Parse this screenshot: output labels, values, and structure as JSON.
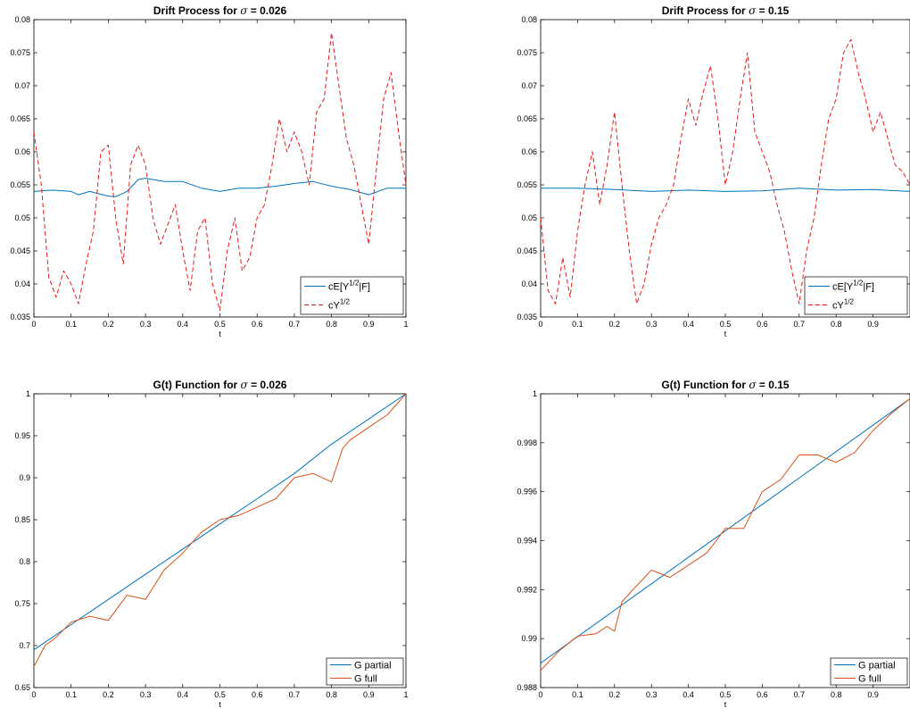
{
  "colors": {
    "blue": "#0072BD",
    "red": "#E41A1C",
    "orange": "#D95319"
  },
  "chart_data": [
    {
      "id": "drift-0026",
      "type": "line",
      "title_prefix": "Drift Process for ",
      "title_symbol": "σ",
      "title_suffix": " = 0.026",
      "xlabel": "t",
      "ylabel": "",
      "xlim": [
        0,
        1
      ],
      "ylim": [
        0.035,
        0.08
      ],
      "xticks": [
        0,
        0.1,
        0.2,
        0.3,
        0.4,
        0.5,
        0.6,
        0.7,
        0.8,
        0.9,
        1
      ],
      "yticks": [
        0.035,
        0.04,
        0.045,
        0.05,
        0.055,
        0.06,
        0.065,
        0.07,
        0.075,
        0.08
      ],
      "xtick_labels": [
        "0",
        "0.1",
        "0.2",
        "0.3",
        "0.4",
        "0.5",
        "0.6",
        "0.7",
        "0.8",
        "0.9",
        "1"
      ],
      "ytick_labels": [
        "0.035",
        "0.04",
        "0.045",
        "0.05",
        "0.055",
        "0.06",
        "0.065",
        "0.07",
        "0.075",
        "0.08"
      ],
      "legend_placement": "bottom-right",
      "series": [
        {
          "name": "cE[Y^{1/2}|F]",
          "legend_main": "cE[Y",
          "legend_sup": "1/2",
          "legend_tail": "|F]",
          "style": "solid",
          "color": "#0072BD",
          "x": [
            0,
            0.05,
            0.1,
            0.12,
            0.15,
            0.2,
            0.22,
            0.25,
            0.28,
            0.3,
            0.35,
            0.4,
            0.45,
            0.5,
            0.55,
            0.6,
            0.65,
            0.7,
            0.75,
            0.8,
            0.85,
            0.9,
            0.95,
            1
          ],
          "y": [
            0.054,
            0.0542,
            0.054,
            0.0535,
            0.054,
            0.0533,
            0.0532,
            0.054,
            0.0558,
            0.056,
            0.0555,
            0.0555,
            0.0545,
            0.054,
            0.0545,
            0.0545,
            0.0548,
            0.0552,
            0.0555,
            0.0548,
            0.0543,
            0.0535,
            0.0545,
            0.0545
          ]
        },
        {
          "name": "cY^{1/2}",
          "legend_main": "cY",
          "legend_sup": "1/2",
          "legend_tail": "",
          "style": "dashed",
          "color": "#E41A1C",
          "x": [
            0,
            0.02,
            0.04,
            0.06,
            0.08,
            0.1,
            0.12,
            0.14,
            0.16,
            0.18,
            0.2,
            0.22,
            0.24,
            0.26,
            0.28,
            0.3,
            0.32,
            0.34,
            0.36,
            0.38,
            0.4,
            0.42,
            0.44,
            0.46,
            0.48,
            0.5,
            0.52,
            0.54,
            0.56,
            0.58,
            0.6,
            0.62,
            0.64,
            0.66,
            0.68,
            0.7,
            0.72,
            0.74,
            0.76,
            0.78,
            0.8,
            0.82,
            0.84,
            0.86,
            0.88,
            0.9,
            0.92,
            0.94,
            0.96,
            0.98,
            1
          ],
          "y": [
            0.063,
            0.055,
            0.041,
            0.038,
            0.042,
            0.04,
            0.037,
            0.043,
            0.048,
            0.06,
            0.061,
            0.05,
            0.043,
            0.058,
            0.061,
            0.058,
            0.05,
            0.046,
            0.049,
            0.052,
            0.045,
            0.039,
            0.048,
            0.05,
            0.04,
            0.036,
            0.045,
            0.05,
            0.042,
            0.044,
            0.05,
            0.052,
            0.058,
            0.065,
            0.06,
            0.063,
            0.06,
            0.055,
            0.066,
            0.068,
            0.078,
            0.07,
            0.062,
            0.058,
            0.052,
            0.046,
            0.057,
            0.068,
            0.072,
            0.063,
            0.055
          ]
        }
      ]
    },
    {
      "id": "drift-015",
      "type": "line",
      "title_prefix": "Drift Process for ",
      "title_symbol": "σ",
      "title_suffix": " = 0.15",
      "xlabel": "t",
      "ylabel": "",
      "xlim": [
        0,
        1
      ],
      "ylim": [
        0.035,
        0.08
      ],
      "xticks": [
        0,
        0.1,
        0.2,
        0.3,
        0.4,
        0.5,
        0.6,
        0.7,
        0.8,
        0.9
      ],
      "yticks": [
        0.035,
        0.04,
        0.045,
        0.05,
        0.055,
        0.06,
        0.065,
        0.07,
        0.075,
        0.08
      ],
      "xtick_labels": [
        "0",
        "0.1",
        "0.2",
        "0.3",
        "0.4",
        "0.5",
        "0.6",
        "0.7",
        "0.8",
        "0.9"
      ],
      "ytick_labels": [
        "0.035",
        "0.04",
        "0.045",
        "0.05",
        "0.055",
        "0.06",
        "0.065",
        "0.07",
        "0.075",
        "0.08"
      ],
      "legend_placement": "bottom-right",
      "series": [
        {
          "name": "cE[Y^{1/2}|F]",
          "legend_main": "cE[Y",
          "legend_sup": "1/2",
          "legend_tail": "|F]",
          "style": "solid",
          "color": "#0072BD",
          "x": [
            0,
            0.1,
            0.2,
            0.3,
            0.4,
            0.5,
            0.6,
            0.7,
            0.8,
            0.9,
            1
          ],
          "y": [
            0.0545,
            0.0545,
            0.0543,
            0.054,
            0.0542,
            0.054,
            0.0541,
            0.0545,
            0.0542,
            0.0543,
            0.054
          ]
        },
        {
          "name": "cY^{1/2}",
          "legend_main": "cY",
          "legend_sup": "1/2",
          "legend_tail": "",
          "style": "dashed",
          "color": "#E41A1C",
          "x": [
            0,
            0.02,
            0.04,
            0.06,
            0.08,
            0.1,
            0.12,
            0.14,
            0.16,
            0.18,
            0.2,
            0.22,
            0.24,
            0.26,
            0.28,
            0.3,
            0.32,
            0.34,
            0.36,
            0.38,
            0.4,
            0.42,
            0.44,
            0.46,
            0.48,
            0.5,
            0.52,
            0.54,
            0.56,
            0.58,
            0.6,
            0.62,
            0.64,
            0.66,
            0.68,
            0.7,
            0.72,
            0.74,
            0.76,
            0.78,
            0.8,
            0.82,
            0.84,
            0.86,
            0.88,
            0.9,
            0.92,
            0.94,
            0.96,
            0.98,
            1
          ],
          "y": [
            0.05,
            0.039,
            0.037,
            0.044,
            0.038,
            0.048,
            0.055,
            0.06,
            0.052,
            0.058,
            0.066,
            0.055,
            0.045,
            0.037,
            0.04,
            0.046,
            0.05,
            0.052,
            0.055,
            0.062,
            0.068,
            0.064,
            0.069,
            0.073,
            0.065,
            0.055,
            0.06,
            0.068,
            0.075,
            0.063,
            0.06,
            0.057,
            0.052,
            0.048,
            0.042,
            0.037,
            0.045,
            0.05,
            0.058,
            0.065,
            0.068,
            0.075,
            0.077,
            0.072,
            0.068,
            0.063,
            0.066,
            0.062,
            0.058,
            0.057,
            0.055
          ]
        }
      ]
    },
    {
      "id": "g-0026",
      "type": "line",
      "title_prefix": "G(t) Function for ",
      "title_symbol": "σ",
      "title_suffix": " = 0.026",
      "xlabel": "t",
      "ylabel": "",
      "xlim": [
        0,
        1
      ],
      "ylim": [
        0.65,
        1
      ],
      "xticks": [
        0,
        0.1,
        0.2,
        0.3,
        0.4,
        0.5,
        0.6,
        0.7,
        0.8,
        0.9,
        1
      ],
      "yticks": [
        0.65,
        0.7,
        0.75,
        0.8,
        0.85,
        0.9,
        0.95,
        1
      ],
      "xtick_labels": [
        "0",
        "0.1",
        "0.2",
        "0.3",
        "0.4",
        "0.5",
        "0.6",
        "0.7",
        "0.8",
        "0.9",
        "1"
      ],
      "ytick_labels": [
        "0.65",
        "0.7",
        "0.75",
        "0.8",
        "0.85",
        "0.9",
        "0.95",
        "1"
      ],
      "legend_placement": "bottom-right",
      "series": [
        {
          "name": "G partial",
          "legend_main": "G partial",
          "legend_sup": "",
          "legend_tail": "",
          "style": "solid",
          "color": "#0072BD",
          "x": [
            0,
            0.1,
            0.2,
            0.3,
            0.4,
            0.5,
            0.6,
            0.7,
            0.8,
            0.9,
            1
          ],
          "y": [
            0.695,
            0.725,
            0.755,
            0.785,
            0.815,
            0.845,
            0.875,
            0.905,
            0.94,
            0.97,
            1
          ]
        },
        {
          "name": "G full",
          "legend_main": "G full",
          "legend_sup": "",
          "legend_tail": "",
          "style": "solid",
          "color": "#D95319",
          "x": [
            0,
            0.03,
            0.06,
            0.1,
            0.15,
            0.2,
            0.25,
            0.3,
            0.35,
            0.4,
            0.45,
            0.5,
            0.55,
            0.6,
            0.65,
            0.7,
            0.75,
            0.8,
            0.83,
            0.85,
            0.9,
            0.95,
            1
          ],
          "y": [
            0.675,
            0.7,
            0.71,
            0.728,
            0.735,
            0.73,
            0.76,
            0.755,
            0.79,
            0.81,
            0.835,
            0.85,
            0.855,
            0.865,
            0.875,
            0.9,
            0.905,
            0.895,
            0.935,
            0.945,
            0.96,
            0.975,
            1
          ]
        }
      ]
    },
    {
      "id": "g-015",
      "type": "line",
      "title_prefix": "G(t) Function for ",
      "title_symbol": "σ",
      "title_suffix": " = 0.15",
      "xlabel": "t",
      "ylabel": "",
      "xlim": [
        0,
        1
      ],
      "ylim": [
        0.988,
        1
      ],
      "xticks": [
        0,
        0.1,
        0.2,
        0.3,
        0.4,
        0.5,
        0.6,
        0.7,
        0.8,
        0.9
      ],
      "yticks": [
        0.988,
        0.99,
        0.992,
        0.994,
        0.996,
        0.998,
        1
      ],
      "xtick_labels": [
        "0",
        "0.1",
        "0.2",
        "0.3",
        "0.4",
        "0.5",
        "0.6",
        "0.7",
        "0.8",
        "0.9"
      ],
      "ytick_labels": [
        "0.988",
        "0.99",
        "0.992",
        "0.994",
        "0.996",
        "0.998",
        "1"
      ],
      "legend_placement": "bottom-right",
      "series": [
        {
          "name": "G partial",
          "legend_main": "G partial",
          "legend_sup": "",
          "legend_tail": "",
          "style": "solid",
          "color": "#0072BD",
          "x": [
            0,
            1
          ],
          "y": [
            0.989,
            0.9998
          ]
        },
        {
          "name": "G full",
          "legend_main": "G full",
          "legend_sup": "",
          "legend_tail": "",
          "style": "solid",
          "color": "#D95319",
          "x": [
            0,
            0.05,
            0.1,
            0.15,
            0.18,
            0.2,
            0.22,
            0.25,
            0.3,
            0.35,
            0.4,
            0.45,
            0.5,
            0.55,
            0.6,
            0.65,
            0.7,
            0.75,
            0.8,
            0.85,
            0.9,
            0.95,
            1
          ],
          "y": [
            0.9887,
            0.9895,
            0.9901,
            0.9902,
            0.9905,
            0.9903,
            0.9915,
            0.992,
            0.9928,
            0.9925,
            0.993,
            0.9935,
            0.9945,
            0.9945,
            0.996,
            0.9965,
            0.9975,
            0.9975,
            0.9972,
            0.9976,
            0.9985,
            0.9992,
            0.9998
          ]
        }
      ]
    }
  ]
}
